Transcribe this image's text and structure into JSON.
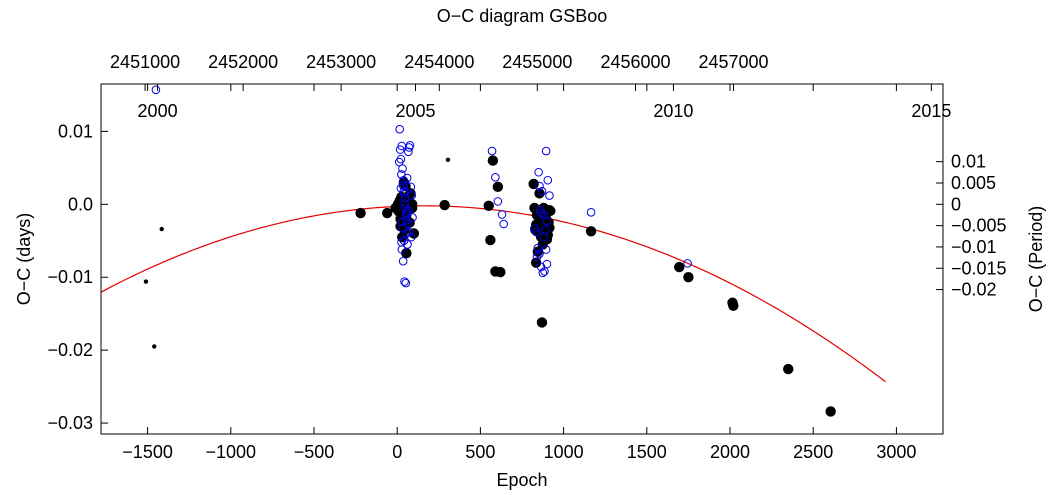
{
  "chart_data": {
    "type": "scatter",
    "title": "O−C diagram GSBoo",
    "xlabel": "Epoch",
    "ylabel_left": "O−C (days)",
    "ylabel_right": "O−C (Period)",
    "xlim": [
      -1780,
      3280
    ],
    "ylim": [
      -0.0315,
      0.0165
    ],
    "x_ticks": [
      -1500,
      -1000,
      -500,
      0,
      500,
      1000,
      1500,
      2000,
      2500,
      3000
    ],
    "x_tick_labels": [
      "−1500",
      "−1000",
      "−500",
      "0",
      "500",
      "1000",
      "1500",
      "2000",
      "2500",
      "3000"
    ],
    "y_ticks": [
      0.01,
      0.0,
      -0.01,
      -0.02,
      -0.03
    ],
    "y_tick_labels": [
      "0.01",
      "0.0",
      "−0.01",
      "−0.02",
      "−0.03"
    ],
    "top_axis": {
      "ticks": [
        2451000,
        2452000,
        2453000,
        2454000,
        2455000,
        2456000,
        2457000
      ],
      "tick_labels": [
        "2451000",
        "2452000",
        "2453000",
        "2454000",
        "2455000",
        "2456000",
        "2457000"
      ],
      "tick_epochs": [
        -1515,
        -926,
        -337,
        253,
        842,
        1432,
        2021
      ]
    },
    "year_axis": {
      "labels": [
        "2000",
        "2005",
        "2010",
        "2015"
      ],
      "epochs": [
        -1440,
        110,
        1660,
        3210
      ]
    },
    "right_axis": {
      "ticks": [
        0.01,
        0.005,
        0,
        -0.005,
        -0.01,
        -0.015,
        -0.02
      ],
      "tick_labels": [
        "0.01",
        "0.005",
        "0",
        "−0.005",
        "−0.01",
        "−0.015",
        "−0.02"
      ],
      "period_days": 0.5847
    },
    "fit": {
      "type": "quadratic",
      "color": "#e00000",
      "x_range": [
        -1780,
        2935
      ],
      "coefficients": {
        "a": -3.14e-09,
        "b": 1.02e-06,
        "c": -0.00029
      }
    },
    "series": [
      {
        "marker": "filled-circle-large",
        "color": "#000000",
        "x": [
          -220,
          -60,
          -10,
          5,
          10,
          15,
          20,
          25,
          30,
          35,
          40,
          45,
          50,
          55,
          60,
          65,
          70,
          75,
          80,
          90,
          100,
          30,
          45,
          60,
          75,
          90,
          20,
          40,
          55,
          285,
          550,
          560,
          575,
          590,
          605,
          620,
          820,
          825,
          830,
          835,
          840,
          845,
          850,
          855,
          860,
          865,
          870,
          875,
          880,
          885,
          890,
          895,
          900,
          905,
          910,
          915,
          920,
          835,
          850,
          870,
          890,
          905,
          915,
          870,
          1165,
          1695,
          1750,
          2015,
          2020,
          2350,
          2605
        ],
        "y": [
          -0.0012,
          -0.0012,
          -0.0005,
          0.0,
          -0.001,
          0.0005,
          -0.002,
          0.001,
          -0.003,
          -0.001,
          0.003,
          -0.0035,
          0.0025,
          -0.0015,
          0.001,
          -0.0005,
          0.0005,
          -0.0025,
          0.0015,
          -0.0005,
          -0.004,
          -0.0045,
          0.0002,
          0.001,
          -0.0007,
          0.0,
          -0.003,
          -0.0025,
          -0.0067,
          -0.0001,
          -0.0002,
          -0.0049,
          0.006,
          -0.0092,
          0.0024,
          -0.0093,
          0.0028,
          -0.0005,
          -0.0035,
          -0.008,
          -0.0015,
          -0.0065,
          -0.0025,
          0.0015,
          -0.001,
          -0.0045,
          -0.003,
          -0.0055,
          -0.0005,
          -0.0035,
          -0.0015,
          -0.002,
          -0.0048,
          -0.001,
          -0.0025,
          -0.0032,
          -0.0009,
          -0.0028,
          -0.0038,
          -0.0011,
          -0.0018,
          -0.0042,
          -0.0008,
          -0.0162,
          -0.0037,
          -0.0086,
          -0.01,
          -0.0135,
          -0.0139,
          -0.0226,
          -0.0284
        ]
      },
      {
        "marker": "filled-circle-small",
        "color": "#000000",
        "x": [
          -1510,
          -1460,
          -1415,
          305
        ],
        "y": [
          -0.0106,
          -0.0195,
          -0.0034,
          0.0061
        ]
      },
      {
        "marker": "open-circle",
        "color": "#0000e0",
        "x": [
          -1450,
          15,
          18,
          22,
          27,
          32,
          38,
          43,
          48,
          52,
          57,
          62,
          67,
          72,
          77,
          82,
          87,
          92,
          12,
          25,
          35,
          45,
          55,
          65,
          75,
          85,
          28,
          36,
          44,
          52,
          60,
          68,
          33,
          41,
          22,
          48,
          30,
          40,
          56,
          26,
          570,
          590,
          605,
          630,
          640,
          825,
          835,
          845,
          855,
          865,
          875,
          885,
          895,
          905,
          915,
          860,
          870,
          880,
          890,
          900,
          850,
          855,
          865,
          880,
          895,
          900,
          840,
          1165,
          1745
        ],
        "y": [
          0.0157,
          0.0103,
          0.0075,
          0.0062,
          0.008,
          0.0049,
          0.0033,
          0.0015,
          -0.0005,
          -0.0022,
          -0.004,
          -0.0055,
          0.0072,
          0.0078,
          0.0081,
          0.0024,
          0.0012,
          -0.0018,
          0.0058,
          0.0041,
          0.0026,
          0.0001,
          -0.0011,
          -0.0027,
          -0.0038,
          -0.0045,
          -0.0062,
          -0.0078,
          -0.0106,
          -0.0108,
          0.0036,
          -0.0009,
          -0.0033,
          -0.005,
          0.0022,
          0.0009,
          -0.0024,
          0.0018,
          -0.0014,
          -0.0052,
          0.0073,
          0.0037,
          0.0004,
          -0.0014,
          -0.0027,
          -0.0033,
          -0.0038,
          -0.006,
          -0.0068,
          -0.0086,
          -0.0094,
          -0.0092,
          0.0073,
          0.0033,
          0.0012,
          -0.0008,
          0.0018,
          -0.0015,
          -0.0035,
          -0.0023,
          0.0044,
          0.0025,
          -0.0012,
          -0.0045,
          -0.0062,
          -0.0082,
          -0.0072,
          -0.0011,
          -0.0081
        ]
      }
    ]
  }
}
